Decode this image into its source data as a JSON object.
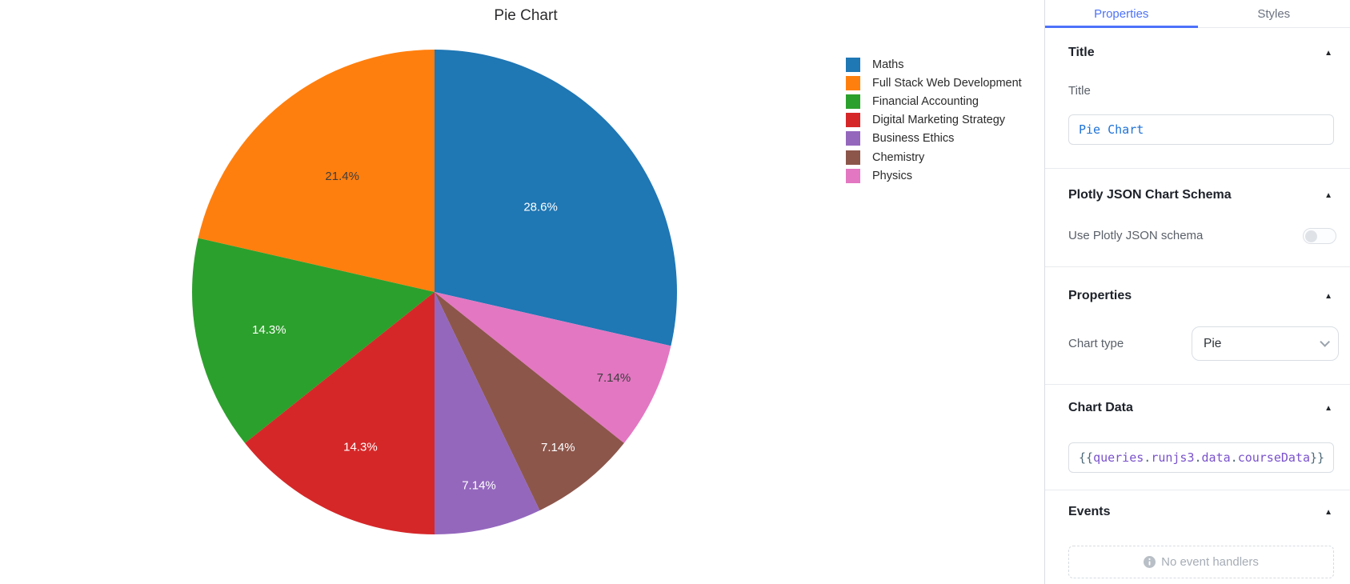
{
  "chart_data": {
    "type": "pie",
    "title": "Pie Chart",
    "labels": [
      "Maths",
      "Full Stack Web Development",
      "Financial Accounting",
      "Digital Marketing Strategy",
      "Business Ethics",
      "Chemistry",
      "Physics"
    ],
    "values": [
      4,
      3,
      2,
      2,
      1,
      1,
      1
    ],
    "percent_labels": [
      "28.6%",
      "21.4%",
      "14.3%",
      "14.3%",
      "7.14%",
      "7.14%",
      "7.14%"
    ],
    "colors": [
      "#1f77b4",
      "#ff7f0e",
      "#2ca02c",
      "#d62728",
      "#9467bd",
      "#8c564b",
      "#e377c2"
    ],
    "label_text_colors": [
      "#ffffff",
      "#3d3d3d",
      "#ffffff",
      "#ffffff",
      "#ffffff",
      "#ffffff",
      "#3d3d3d"
    ],
    "label_positions": [
      [
        0.56,
        38.6
      ],
      [
        0.61,
        128.6
      ],
      [
        0.7,
        192.9
      ],
      [
        0.71,
        244.5
      ],
      [
        0.82,
        282.9
      ],
      [
        0.82,
        308.4
      ],
      [
        0.82,
        334.3
      ]
    ],
    "legend_position": "right",
    "layout": "first slice clockwise from 12 o'clock, remaining slices counterclockwise (plotly default)"
  },
  "inspector": {
    "tabs": {
      "properties": "Properties",
      "styles": "Styles",
      "active": "Properties"
    },
    "title_section": {
      "header": "Title",
      "field_label": "Title",
      "field_value": "Pie Chart"
    },
    "plotly_schema_section": {
      "header": "Plotly JSON Chart Schema",
      "toggle_label": "Use Plotly JSON schema",
      "toggle_state": "off"
    },
    "properties_section": {
      "header": "Properties",
      "field_label": "Chart type",
      "dropdown_value": "Pie"
    },
    "chart_data_section": {
      "header": "Chart Data",
      "field_value": "{{queries.runjs3.data.courseData}}"
    },
    "events_section": {
      "header": "Events",
      "empty_text": "No event handlers"
    }
  },
  "icons": {
    "collapse_caret": "▲"
  },
  "colors": {
    "accent": "#4d72fa",
    "title_code_text": "#1f72d6",
    "token_brace": "#4e6a78",
    "token_identifier": "#7a52cc"
  }
}
